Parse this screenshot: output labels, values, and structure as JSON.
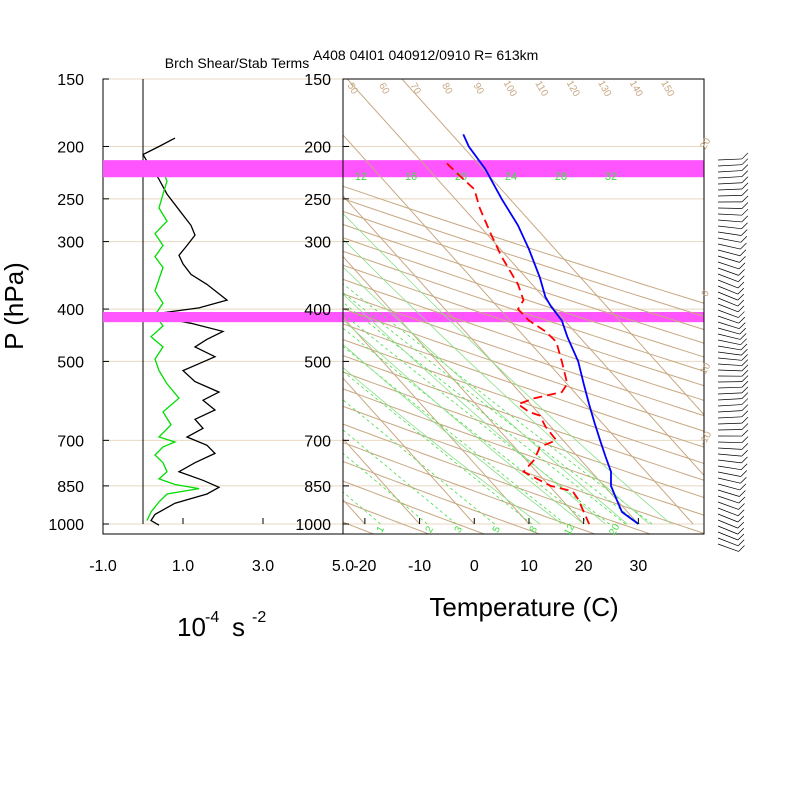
{
  "header": {
    "left_title": "Brch Shear/Stab Terms",
    "right_title": "A408 04I01 040912/0910 R= 613km"
  },
  "colors": {
    "temperature": "#0000ff",
    "dewpoint": "#ff0000",
    "shear_term": "#000000",
    "stability_term": "#00dd00",
    "highlight_band": "#ff55ff",
    "skewt_lines": "#c8a882",
    "mixing_ratio": "#44dd44"
  },
  "chart_data": [
    {
      "type": "line",
      "panel": "shear-stability",
      "title": "Brch Shear/Stab Terms",
      "xlabel_base": "10",
      "xlabel_exp": "-4",
      "xlabel_unit": "s",
      "xlabel_unit_exp": "-2",
      "ylabel": "P (hPa)",
      "xlim": [
        -1.0,
        5.0
      ],
      "ylim": [
        1000,
        150
      ],
      "y_scale": "log",
      "x_ticks": [
        "-1.0",
        "1.0",
        "3.0",
        "5.0"
      ],
      "y_ticks": [
        "150",
        "200",
        "250",
        "300",
        "400",
        "500",
        "700",
        "850",
        "1000"
      ],
      "series": [
        {
          "key": "shear",
          "points": [
            [
              0.8,
              193
            ],
            [
              0.4,
              200
            ],
            [
              0.0,
              207
            ],
            [
              0.1,
              213
            ],
            [
              0.2,
              218
            ],
            [
              0.4,
              230
            ],
            [
              0.6,
              245
            ],
            [
              0.9,
              262
            ],
            [
              1.2,
              280
            ],
            [
              1.3,
              292
            ],
            [
              1.1,
              305
            ],
            [
              0.9,
              318
            ],
            [
              1.0,
              330
            ],
            [
              1.2,
              345
            ],
            [
              1.6,
              360
            ],
            [
              2.1,
              385
            ],
            [
              1.4,
              398
            ],
            [
              0.1,
              410
            ],
            [
              1.2,
              425
            ],
            [
              2.0,
              440
            ],
            [
              1.6,
              455
            ],
            [
              1.3,
              470
            ],
            [
              1.8,
              490
            ],
            [
              1.4,
              505
            ],
            [
              1.0,
              520
            ],
            [
              1.3,
              545
            ],
            [
              1.9,
              570
            ],
            [
              1.5,
              590
            ],
            [
              1.8,
              615
            ],
            [
              1.3,
              640
            ],
            [
              1.5,
              665
            ],
            [
              1.1,
              690
            ],
            [
              1.6,
              715
            ],
            [
              1.8,
              740
            ],
            [
              1.3,
              770
            ],
            [
              0.9,
              800
            ],
            [
              1.5,
              830
            ],
            [
              1.9,
              855
            ],
            [
              1.6,
              880
            ],
            [
              0.8,
              915
            ],
            [
              0.3,
              960
            ],
            [
              0.2,
              985
            ],
            [
              0.4,
              1005
            ]
          ]
        },
        {
          "key": "stability",
          "points": [
            [
              0.6,
              215
            ],
            [
              0.5,
              222
            ],
            [
              0.6,
              232
            ],
            [
              0.5,
              245
            ],
            [
              0.4,
              260
            ],
            [
              0.6,
              275
            ],
            [
              0.3,
              290
            ],
            [
              0.5,
              305
            ],
            [
              0.3,
              320
            ],
            [
              0.5,
              335
            ],
            [
              0.4,
              352
            ],
            [
              0.3,
              370
            ],
            [
              0.5,
              390
            ],
            [
              0.3,
              410
            ],
            [
              0.5,
              430
            ],
            [
              0.2,
              450
            ],
            [
              0.5,
              470
            ],
            [
              0.3,
              495
            ],
            [
              0.4,
              520
            ],
            [
              0.6,
              550
            ],
            [
              0.9,
              585
            ],
            [
              0.5,
              620
            ],
            [
              0.7,
              655
            ],
            [
              0.4,
              690
            ],
            [
              0.8,
              705
            ],
            [
              0.5,
              720
            ],
            [
              0.3,
              745
            ],
            [
              0.5,
              770
            ],
            [
              0.6,
              800
            ],
            [
              0.4,
              825
            ],
            [
              0.8,
              845
            ],
            [
              1.4,
              860
            ],
            [
              0.6,
              880
            ],
            [
              0.4,
              910
            ],
            [
              0.2,
              950
            ],
            [
              0.1,
              985
            ]
          ]
        }
      ]
    },
    {
      "type": "line",
      "panel": "skew-t",
      "xlabel": "Temperature (C)",
      "ylabel": "P (hPa)",
      "xlim": [
        -24,
        42
      ],
      "ylim": [
        1000,
        150
      ],
      "y_scale": "log",
      "x_ticks": [
        "-20",
        "-10",
        "0",
        "10",
        "20",
        "30"
      ],
      "y_ticks": [
        "150",
        "200",
        "250",
        "300",
        "400",
        "500",
        "700",
        "850",
        "1000"
      ],
      "mixing_ratio_labels_top": [
        "12",
        "16",
        "20",
        "24",
        "28",
        "32"
      ],
      "mixing_ratio_labels_bottom": [
        "1",
        "2",
        "3",
        "5",
        "8",
        "12",
        "20"
      ],
      "dry_adiabat_labels_top": [
        "50",
        "60",
        "70",
        "80",
        "90",
        "100",
        "110",
        "120",
        "130",
        "140",
        "150"
      ],
      "right_edge_labels": [
        "20",
        "10",
        "0",
        "-10"
      ],
      "highlight_bands": [
        [
          212,
          228
        ],
        [
          405,
          423
        ]
      ],
      "series": [
        {
          "key": "temperature",
          "points": [
            [
              -2,
              190
            ],
            [
              -1,
              200
            ],
            [
              2,
              220
            ],
            [
              5,
              250
            ],
            [
              8,
              280
            ],
            [
              10,
              310
            ],
            [
              12,
              350
            ],
            [
              13,
              380
            ],
            [
              14,
              395
            ],
            [
              16,
              420
            ],
            [
              17,
              450
            ],
            [
              19,
              500
            ],
            [
              20,
              550
            ],
            [
              21,
              600
            ],
            [
              22,
              650
            ],
            [
              23,
              700
            ],
            [
              24,
              750
            ],
            [
              25,
              800
            ],
            [
              25,
              850
            ],
            [
              26,
              900
            ],
            [
              27,
              950
            ],
            [
              30,
              1000
            ]
          ]
        },
        {
          "key": "dewpoint",
          "points": [
            [
              -5,
              215
            ],
            [
              -3,
              225
            ],
            [
              0,
              240
            ],
            [
              1,
              260
            ],
            [
              3,
              290
            ],
            [
              5,
              320
            ],
            [
              8,
              360
            ],
            [
              9,
              385
            ],
            [
              8,
              400
            ],
            [
              10,
              420
            ],
            [
              13,
              440
            ],
            [
              15,
              460
            ],
            [
              16,
              500
            ],
            [
              17,
              550
            ],
            [
              16,
              570
            ],
            [
              11,
              585
            ],
            [
              8,
              600
            ],
            [
              10,
              620
            ],
            [
              12,
              630
            ],
            [
              13,
              660
            ],
            [
              15,
              700
            ],
            [
              12,
              720
            ],
            [
              11,
              760
            ],
            [
              9,
              800
            ],
            [
              11,
              820
            ],
            [
              14,
              850
            ],
            [
              18,
              870
            ],
            [
              19,
              900
            ],
            [
              21,
              1000
            ]
          ]
        }
      ]
    }
  ]
}
